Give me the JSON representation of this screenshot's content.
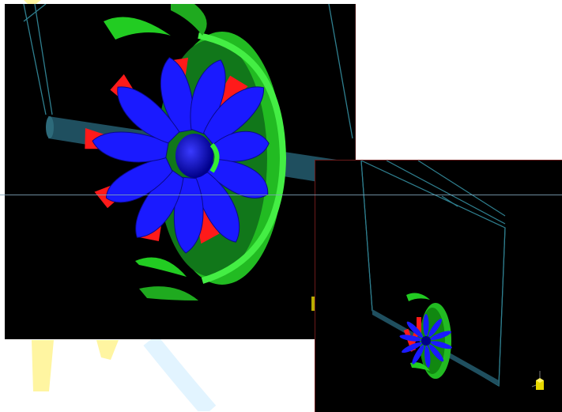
{
  "figure": {
    "views": [
      {
        "name": "close-up-view",
        "content": "fan-rotor-closeup"
      },
      {
        "name": "overview-view",
        "content": "fan-in-duct-overview"
      }
    ],
    "colors": {
      "background": "#000000",
      "rotor_blades": "#1a1aff",
      "stator_blades": "#ff1a1a",
      "housing": "#22cc22",
      "wireframe": "#2f7f8f",
      "shaft": "#1f4f5f",
      "axis_marker": "#e8d800",
      "page_decoration": "#fff6a0"
    },
    "icons": [
      "fan-rotor-icon",
      "axis-triad-icon"
    ]
  }
}
